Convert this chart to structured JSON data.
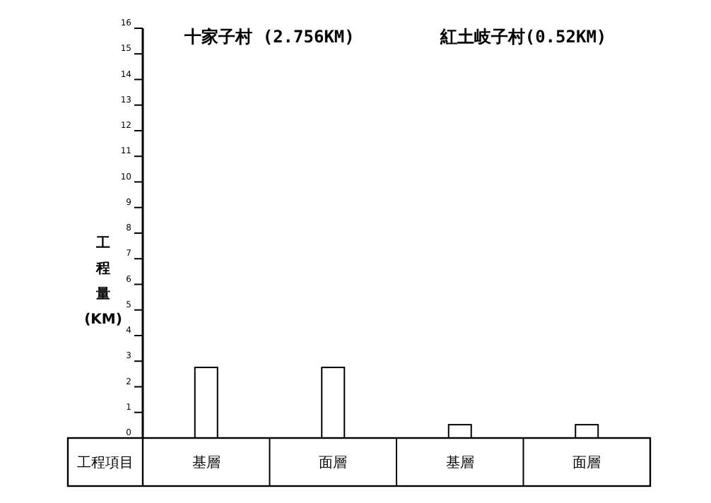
{
  "chart_data": {
    "type": "bar",
    "categories": [
      "基層",
      "面層",
      "基層",
      "面層"
    ],
    "values": [
      2.756,
      2.756,
      0.52,
      0.52
    ],
    "color": "#ffffff",
    "ylabel": "工程量(KM)",
    "xlabel": "工程項目",
    "annotations": [
      "十家子村 (2.756KM)",
      "紅土岐子村(0.52KM)"
    ],
    "ylim": [
      0,
      16
    ],
    "yticks": [
      0,
      1,
      2,
      3,
      4,
      5,
      6,
      7,
      8,
      9,
      10,
      11,
      12,
      13,
      14,
      15,
      16
    ]
  }
}
